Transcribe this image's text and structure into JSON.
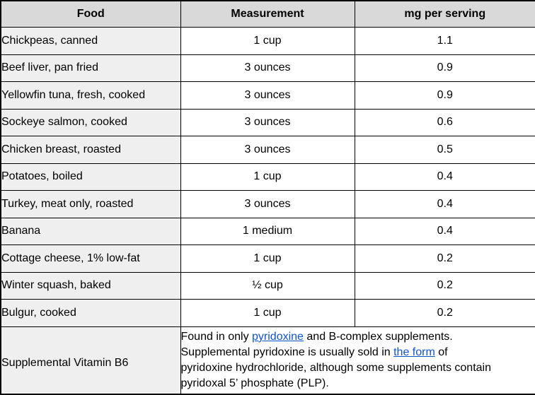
{
  "colors": {
    "header_bg": "#d9d9d9",
    "food_col_bg": "#efefef",
    "border": "#000000",
    "link": "#1155cc",
    "text": "#000000"
  },
  "table": {
    "columns": [
      "Food",
      "Measurement",
      "mg per serving"
    ],
    "rows": [
      {
        "food": "Chickpeas, canned",
        "measurement": "1 cup",
        "mg": "1.1"
      },
      {
        "food": "Beef liver, pan fried",
        "measurement": "3 ounces",
        "mg": "0.9"
      },
      {
        "food": "Yellowfin tuna, fresh, cooked",
        "measurement": "3 ounces",
        "mg": "0.9"
      },
      {
        "food": "Sockeye salmon, cooked",
        "measurement": "3 ounces",
        "mg": "0.6"
      },
      {
        "food": "Chicken breast, roasted",
        "measurement": "3 ounces",
        "mg": "0.5"
      },
      {
        "food": "Potatoes, boiled",
        "measurement": "1 cup",
        "mg": "0.4"
      },
      {
        "food": "Turkey, meat only, roasted",
        "measurement": "3 ounces",
        "mg": "0.4"
      },
      {
        "food": "Banana",
        "measurement": "1 medium",
        "mg": "0.4"
      },
      {
        "food": "Cottage cheese, 1% low-fat",
        "measurement": "1 cup",
        "mg": "0.2"
      },
      {
        "food": "Winter squash, baked",
        "measurement": "½ cup",
        "mg": "0.2"
      },
      {
        "food": "Bulgur, cooked",
        "measurement": "1 cup",
        "mg": "0.2"
      }
    ],
    "note_row": {
      "food": "Supplemental Vitamin B6",
      "lines": [
        [
          {
            "text": "Found in only "
          },
          {
            "text": "pyridoxine",
            "link": true
          },
          {
            "text": " and B-complex supplements."
          }
        ],
        [
          {
            "text": "Supplemental pyridoxine is usually sold in "
          },
          {
            "text": "the form",
            "link": true
          },
          {
            "text": " of"
          }
        ],
        [
          {
            "text": "pyridoxine hydrochloride, although some supplements contain"
          }
        ],
        [
          {
            "text": "pyridoxal 5’ phosphate (PLP)."
          }
        ]
      ]
    }
  }
}
